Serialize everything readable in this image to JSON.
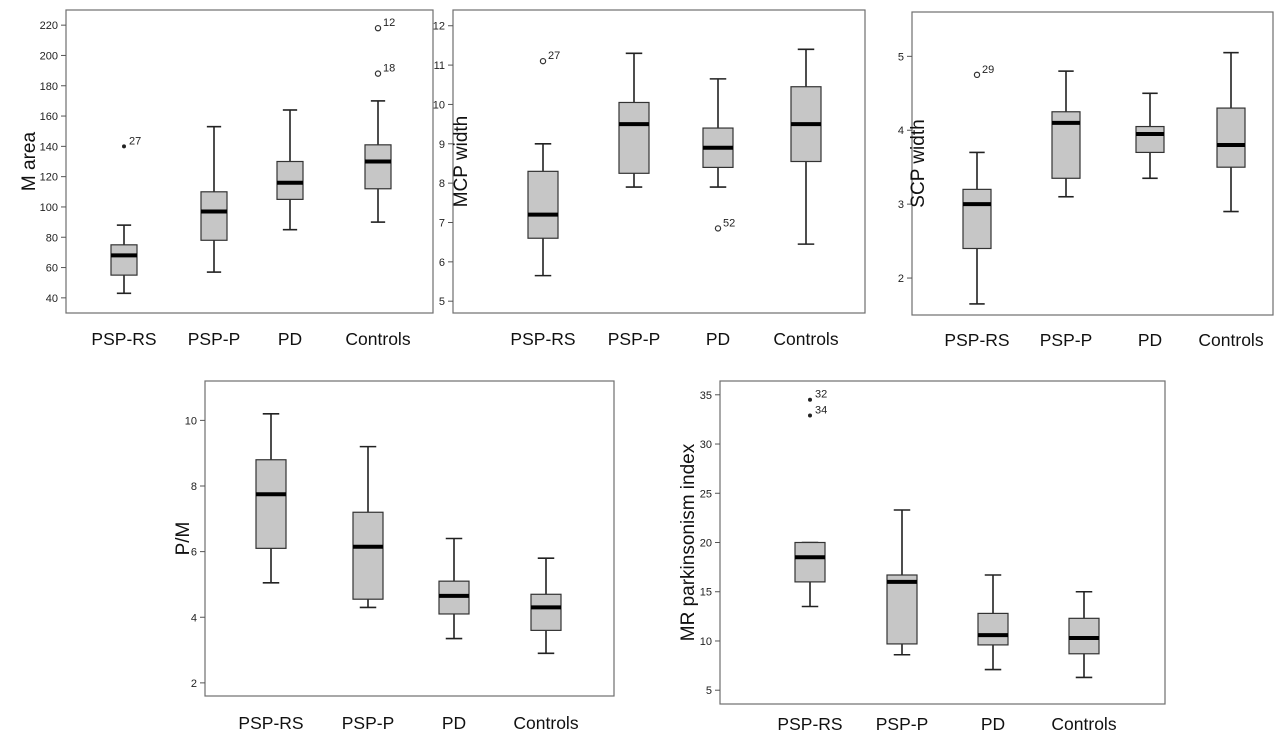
{
  "chart_data": [
    {
      "type": "box",
      "ylabel": "M area",
      "ylim": [
        30,
        230
      ],
      "yticks": [
        40,
        60,
        80,
        100,
        120,
        140,
        160,
        180,
        200,
        220
      ],
      "categories": [
        "PSP-RS",
        "PSP-P",
        "PD",
        "Controls"
      ],
      "boxes": [
        {
          "min": 43,
          "q1": 55,
          "median": 68,
          "q3": 75,
          "max": 88
        },
        {
          "min": 57,
          "q1": 78,
          "median": 97,
          "q3": 110,
          "max": 153
        },
        {
          "min": 85,
          "q1": 105,
          "median": 116,
          "q3": 130,
          "max": 164
        },
        {
          "min": 90,
          "q1": 112,
          "median": 130,
          "q3": 141,
          "max": 170
        }
      ],
      "outliers": [
        {
          "category": "PSP-RS",
          "y": 140,
          "label": "27",
          "marker": "dot"
        },
        {
          "category": "Controls",
          "y": 218,
          "label": "12",
          "marker": "circle"
        },
        {
          "category": "Controls",
          "y": 188,
          "label": "18",
          "marker": "circle"
        }
      ]
    },
    {
      "type": "box",
      "ylabel": "MCP width",
      "ylim": [
        4.7,
        12.4
      ],
      "yticks": [
        5,
        6,
        7,
        8,
        9,
        10,
        11,
        12
      ],
      "categories": [
        "PSP-RS",
        "PSP-P",
        "PD",
        "Controls"
      ],
      "boxes": [
        {
          "min": 5.65,
          "q1": 6.6,
          "median": 7.2,
          "q3": 8.3,
          "max": 9.0
        },
        {
          "min": 7.9,
          "q1": 8.25,
          "median": 9.5,
          "q3": 10.05,
          "max": 11.3
        },
        {
          "min": 7.9,
          "q1": 8.4,
          "median": 8.9,
          "q3": 9.4,
          "max": 10.65
        },
        {
          "min": 6.45,
          "q1": 8.55,
          "median": 9.5,
          "q3": 10.45,
          "max": 11.4
        }
      ],
      "outliers": [
        {
          "category": "PSP-RS",
          "y": 11.1,
          "label": "27",
          "marker": "circle"
        },
        {
          "category": "PD",
          "y": 6.85,
          "label": "52",
          "marker": "circle"
        }
      ]
    },
    {
      "type": "box",
      "ylabel": "SCP width",
      "ylim": [
        1.5,
        5.6
      ],
      "yticks": [
        2,
        3,
        4,
        5
      ],
      "categories": [
        "PSP-RS",
        "PSP-P",
        "PD",
        "Controls"
      ],
      "boxes": [
        {
          "min": 1.65,
          "q1": 2.4,
          "median": 3.0,
          "q3": 3.2,
          "max": 3.7
        },
        {
          "min": 3.1,
          "q1": 3.35,
          "median": 4.1,
          "q3": 4.25,
          "max": 4.8
        },
        {
          "min": 3.35,
          "q1": 3.7,
          "median": 3.95,
          "q3": 4.05,
          "max": 4.5
        },
        {
          "min": 2.9,
          "q1": 3.5,
          "median": 3.8,
          "q3": 4.3,
          "max": 5.05
        }
      ],
      "outliers": [
        {
          "category": "PSP-RS",
          "y": 4.75,
          "label": "29",
          "marker": "circle"
        }
      ]
    },
    {
      "type": "box",
      "ylabel": "P/M",
      "ylim": [
        1.6,
        11.2
      ],
      "yticks": [
        2,
        4,
        6,
        8,
        10
      ],
      "categories": [
        "PSP-RS",
        "PSP-P",
        "PD",
        "Controls"
      ],
      "boxes": [
        {
          "min": 5.05,
          "q1": 6.1,
          "median": 7.75,
          "q3": 8.8,
          "max": 10.2
        },
        {
          "min": 4.3,
          "q1": 4.55,
          "median": 6.15,
          "q3": 7.2,
          "max": 9.2
        },
        {
          "min": 3.35,
          "q1": 4.1,
          "median": 4.65,
          "q3": 5.1,
          "max": 6.4
        },
        {
          "min": 2.9,
          "q1": 3.6,
          "median": 4.3,
          "q3": 4.7,
          "max": 5.8
        }
      ],
      "outliers": []
    },
    {
      "type": "box",
      "ylabel": "MR parkinsonism index",
      "ylim": [
        3.6,
        36.4
      ],
      "yticks": [
        5,
        10,
        15,
        20,
        25,
        30,
        35
      ],
      "categories": [
        "PSP-RS",
        "PSP-P",
        "PD",
        "Controls"
      ],
      "boxes": [
        {
          "min": 13.5,
          "q1": 16.0,
          "median": 18.5,
          "q3": 20.0,
          "max": 20.0
        },
        {
          "min": 8.6,
          "q1": 9.7,
          "median": 16.0,
          "q3": 16.7,
          "max": 23.3
        },
        {
          "min": 7.1,
          "q1": 9.6,
          "median": 10.6,
          "q3": 12.8,
          "max": 16.7
        },
        {
          "min": 6.3,
          "q1": 8.7,
          "median": 10.3,
          "q3": 12.3,
          "max": 15.0
        }
      ],
      "outliers": [
        {
          "category": "PSP-RS",
          "y": 34.5,
          "label": "32",
          "marker": "dot"
        },
        {
          "category": "PSP-RS",
          "y": 32.9,
          "label": "34",
          "marker": "dot"
        }
      ]
    }
  ]
}
